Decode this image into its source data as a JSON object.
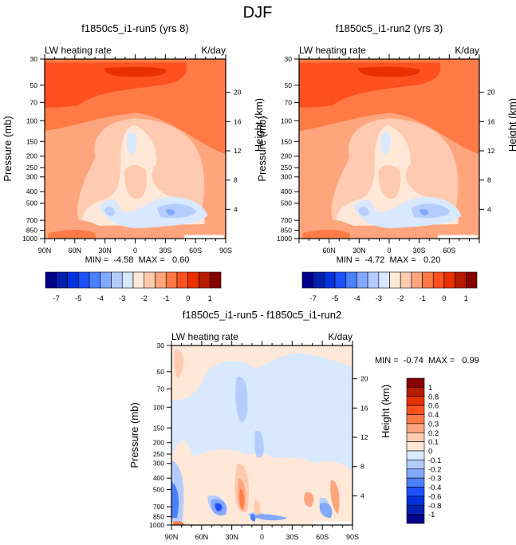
{
  "figure": {
    "title": "DJF"
  },
  "palette": {
    "levels16": [
      "#00008b",
      "#0020b0",
      "#0033dd",
      "#1e50ff",
      "#4a80ff",
      "#82a8ff",
      "#b4ccff",
      "#d7e8ff",
      "#ffe8d8",
      "#ffcab0",
      "#ffa57e",
      "#ff7a45",
      "#ff5020",
      "#e83000",
      "#b81c00",
      "#870000"
    ]
  },
  "chart_data": [
    {
      "type": "heatmap",
      "id": "panel-run5",
      "title": "f1850c5_i1-run5 (yrs 8)",
      "left_label": "LW heating rate",
      "right_label": "K/day",
      "ylabel": "Pressure (mb)",
      "ylabel_right": "Height (km)",
      "x_ticks": [
        "90N",
        "60N",
        "30N",
        "0",
        "30S",
        "60S",
        "90S"
      ],
      "y_ticks": [
        "30",
        "50",
        "70",
        "100",
        "150",
        "200",
        "250",
        "300",
        "400",
        "500",
        "700",
        "850",
        "1000"
      ],
      "y_right_ticks": [
        "20",
        "16",
        "12",
        "8",
        "4"
      ],
      "stats": "MIN =  -4.58  MAX =   0.60",
      "min": -4.58,
      "max": 0.6,
      "colorbar": {
        "orientation": "horizontal",
        "labels": [
          "-7",
          "-5",
          "-4",
          "-3",
          "-2",
          "-1",
          "0",
          "1"
        ],
        "levels": [
          -7,
          -6,
          -5,
          -4.5,
          -4,
          -3.5,
          -3,
          -2.5,
          -2,
          -1.5,
          -1,
          -0.5,
          0,
          0.5,
          1
        ]
      }
    },
    {
      "type": "heatmap",
      "id": "panel-run2",
      "title": "f1850c5_i1-run2 (yrs 3)",
      "left_label": "LW heating rate",
      "right_label": "K/day",
      "ylabel": "Pressure (mb)",
      "ylabel_right": "Height (km)",
      "x_ticks": [
        "60N",
        "30N",
        "0",
        "30S",
        "60S"
      ],
      "y_ticks": [
        "30",
        "50",
        "70",
        "100",
        "150",
        "200",
        "250",
        "300",
        "400",
        "500",
        "700",
        "850",
        "1000"
      ],
      "y_right_ticks": [
        "20",
        "16",
        "12",
        "8",
        "4"
      ],
      "stats": "MIN =  -4.72  MAX =   0.20",
      "min": -4.72,
      "max": 0.2,
      "colorbar": {
        "orientation": "horizontal",
        "labels": [
          "-7",
          "-5",
          "-4",
          "-3",
          "-2",
          "-1",
          "0",
          "1"
        ],
        "levels": [
          -7,
          -6,
          -5,
          -4.5,
          -4,
          -3.5,
          -3,
          -2.5,
          -2,
          -1.5,
          -1,
          -0.5,
          0,
          0.5,
          1
        ]
      }
    },
    {
      "type": "heatmap",
      "id": "panel-diff",
      "title": "f1850c5_i1-run5 - f1850c5_i1-run2",
      "left_label": "LW heating rate",
      "right_label": "K/day",
      "ylabel": "Pressure (mb)",
      "ylabel_right": "Height (km)",
      "x_ticks": [
        "90N",
        "60N",
        "30N",
        "0",
        "30S",
        "60S",
        "90S"
      ],
      "y_ticks": [
        "30",
        "50",
        "70",
        "100",
        "150",
        "200",
        "250",
        "300",
        "400",
        "500",
        "700",
        "850",
        "1000"
      ],
      "y_right_ticks": [
        "20",
        "16",
        "12",
        "8",
        "4"
      ],
      "stats": "MIN =  -0.74  MAX =   0.99",
      "min": -0.74,
      "max": 0.99,
      "colorbar": {
        "orientation": "vertical",
        "labels": [
          "1",
          "0.8",
          "0.6",
          "0.4",
          "0.3",
          "0.2",
          "0.1",
          "0",
          "-0.1",
          "-0.2",
          "-0.3",
          "-0.4",
          "-0.6",
          "-0.8",
          "-1"
        ],
        "levels": [
          1,
          0.8,
          0.6,
          0.4,
          0.3,
          0.2,
          0.1,
          0,
          -0.1,
          -0.2,
          -0.3,
          -0.4,
          -0.6,
          -0.8,
          -1
        ]
      }
    }
  ]
}
